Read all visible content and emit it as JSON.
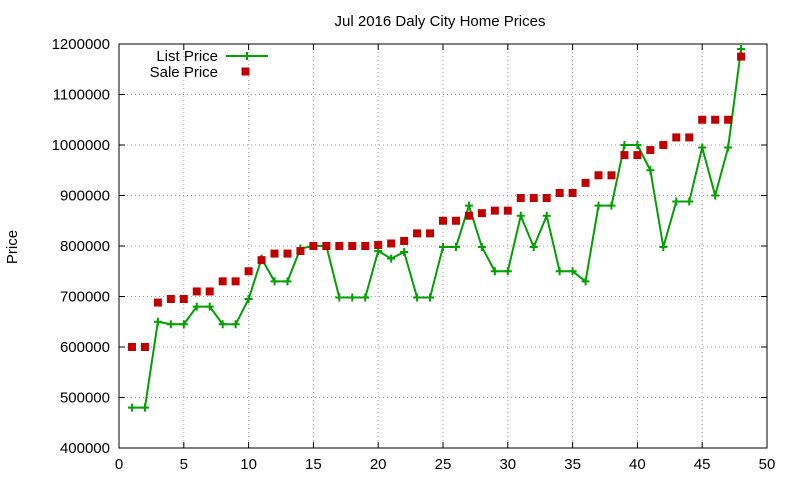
{
  "chart_data": {
    "type": "line",
    "title": "Jul 2016 Daly City Home Prices",
    "xlabel": "",
    "ylabel": "Price",
    "xlim": [
      0,
      50
    ],
    "ylim": [
      400000,
      1200000
    ],
    "x_ticks": [
      "0",
      "5",
      "10",
      "15",
      "20",
      "25",
      "30",
      "35",
      "40",
      "45",
      "50"
    ],
    "y_ticks": [
      "400000",
      "500000",
      "600000",
      "700000",
      "800000",
      "900000",
      "1000000",
      "1100000",
      "1200000"
    ],
    "grid": true,
    "legend_position": "top-left",
    "series": [
      {
        "name": "List Price",
        "style": "line-plus",
        "color": "#00a000",
        "x": [
          1,
          2,
          3,
          4,
          5,
          6,
          7,
          8,
          9,
          10,
          11,
          12,
          13,
          14,
          15,
          16,
          17,
          18,
          19,
          20,
          21,
          22,
          23,
          24,
          25,
          26,
          27,
          28,
          29,
          30,
          31,
          32,
          33,
          34,
          35,
          36,
          37,
          38,
          39,
          40,
          41,
          42,
          43,
          44,
          45,
          46,
          47,
          48
        ],
        "values": [
          480000,
          480000,
          650000,
          645000,
          645000,
          680000,
          680000,
          645000,
          645000,
          695000,
          775000,
          730000,
          730000,
          795000,
          800000,
          800000,
          698000,
          698000,
          698000,
          790000,
          775000,
          788000,
          698000,
          698000,
          798000,
          798000,
          880000,
          798000,
          750000,
          750000,
          860000,
          798000,
          860000,
          750000,
          750000,
          730000,
          880000,
          880000,
          1000000,
          1000000,
          950000,
          798000,
          888000,
          888000,
          995000,
          900000,
          995000,
          1190000
        ]
      },
      {
        "name": "Sale Price",
        "style": "squares",
        "color": "#c00000",
        "x": [
          1,
          2,
          3,
          4,
          5,
          6,
          7,
          8,
          9,
          10,
          11,
          12,
          13,
          14,
          15,
          16,
          17,
          18,
          19,
          20,
          21,
          22,
          23,
          24,
          25,
          26,
          27,
          28,
          29,
          30,
          31,
          32,
          33,
          34,
          35,
          36,
          37,
          38,
          39,
          40,
          41,
          42,
          43,
          44,
          45,
          46,
          47,
          48
        ],
        "values": [
          600000,
          600000,
          688000,
          695000,
          695000,
          710000,
          710000,
          730000,
          730000,
          750000,
          772000,
          785000,
          785000,
          790000,
          800000,
          800000,
          800000,
          800000,
          800000,
          802000,
          805000,
          810000,
          825000,
          825000,
          850000,
          850000,
          860000,
          865000,
          870000,
          870000,
          895000,
          895000,
          895000,
          905000,
          905000,
          925000,
          940000,
          940000,
          980000,
          980000,
          990000,
          1000000,
          1015000,
          1015000,
          1050000,
          1050000,
          1050000,
          1175000
        ]
      }
    ]
  }
}
